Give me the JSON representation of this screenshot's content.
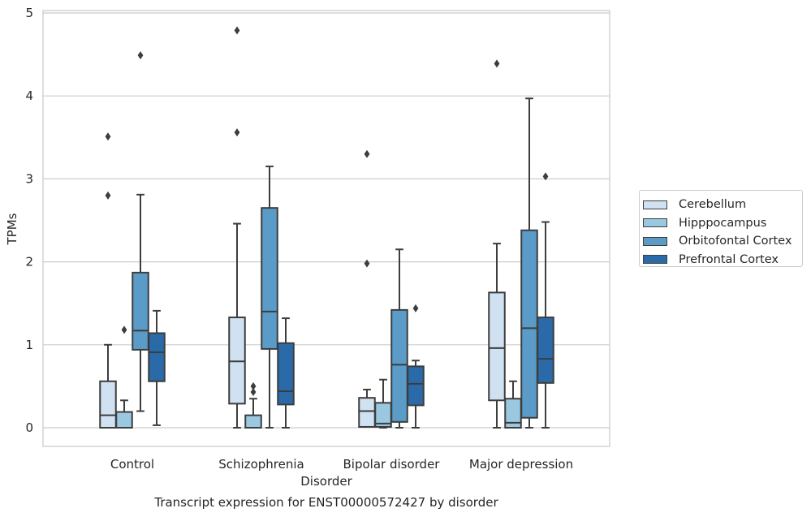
{
  "chart_data": {
    "type": "box",
    "title": "Transcript expression for ENST00000572427 by disorder",
    "xlabel": "Disorder",
    "ylabel": "TPMs",
    "categories": [
      "Control",
      "Schizophrenia",
      "Bipolar disorder",
      "Major depression"
    ],
    "ylim": [
      -0.22,
      5.05
    ],
    "yticks": [
      "0",
      "1",
      "2",
      "3",
      "4",
      "5"
    ],
    "grid": true,
    "legend_position": "right",
    "series": [
      {
        "name": "Cerebellum",
        "color": "#d0e1f2",
        "boxes": [
          {
            "whisker_low": 0,
            "q1": 0,
            "median": 0.15,
            "q3": 0.56,
            "whisker_high": 1.0,
            "outliers": [
              2.8,
              3.51
            ]
          },
          {
            "whisker_low": 0,
            "q1": 0.29,
            "median": 0.8,
            "q3": 1.33,
            "whisker_high": 2.46,
            "outliers": [
              3.56,
              4.79
            ]
          },
          {
            "whisker_low": 0.01,
            "q1": 0.01,
            "median": 0.2,
            "q3": 0.36,
            "whisker_high": 0.46,
            "outliers": [
              1.98,
              3.3
            ]
          },
          {
            "whisker_low": 0,
            "q1": 0.33,
            "median": 0.96,
            "q3": 1.63,
            "whisker_high": 2.22,
            "outliers": [
              4.39
            ]
          }
        ]
      },
      {
        "name": "Hipppocampus",
        "color": "#9ac8e0",
        "boxes": [
          {
            "whisker_low": 0,
            "q1": 0,
            "median": 0,
            "q3": 0.19,
            "whisker_high": 0.33,
            "outliers": [
              1.18
            ]
          },
          {
            "whisker_low": 0,
            "q1": 0,
            "median": 0,
            "q3": 0.15,
            "whisker_high": 0.35,
            "outliers": [
              0.43,
              0.5
            ]
          },
          {
            "whisker_low": 0,
            "q1": 0.01,
            "median": 0.05,
            "q3": 0.3,
            "whisker_high": 0.58,
            "outliers": []
          },
          {
            "whisker_low": 0,
            "q1": 0,
            "median": 0.06,
            "q3": 0.35,
            "whisker_high": 0.56,
            "outliers": []
          }
        ]
      },
      {
        "name": "Orbitofontal Cortex",
        "color": "#5a9bc8",
        "boxes": [
          {
            "whisker_low": 0.2,
            "q1": 0.94,
            "median": 1.17,
            "q3": 1.87,
            "whisker_high": 2.81,
            "outliers": [
              4.49
            ]
          },
          {
            "whisker_low": 0,
            "q1": 0.95,
            "median": 1.4,
            "q3": 2.65,
            "whisker_high": 3.15,
            "outliers": []
          },
          {
            "whisker_low": 0,
            "q1": 0.07,
            "median": 0.76,
            "q3": 1.42,
            "whisker_high": 2.15,
            "outliers": []
          },
          {
            "whisker_low": 0,
            "q1": 0.12,
            "median": 1.2,
            "q3": 2.38,
            "whisker_high": 3.97,
            "outliers": []
          }
        ]
      },
      {
        "name": "Prefrontal Cortex",
        "color": "#2b6aa8",
        "boxes": [
          {
            "whisker_low": 0.03,
            "q1": 0.56,
            "median": 0.91,
            "q3": 1.14,
            "whisker_high": 1.41,
            "outliers": []
          },
          {
            "whisker_low": 0,
            "q1": 0.28,
            "median": 0.44,
            "q3": 1.02,
            "whisker_high": 1.32,
            "outliers": []
          },
          {
            "whisker_low": 0,
            "q1": 0.27,
            "median": 0.53,
            "q3": 0.74,
            "whisker_high": 0.81,
            "outliers": [
              1.44
            ]
          },
          {
            "whisker_low": 0,
            "q1": 0.54,
            "median": 0.83,
            "q3": 1.33,
            "whisker_high": 2.48,
            "outliers": [
              3.03
            ]
          }
        ]
      }
    ]
  }
}
